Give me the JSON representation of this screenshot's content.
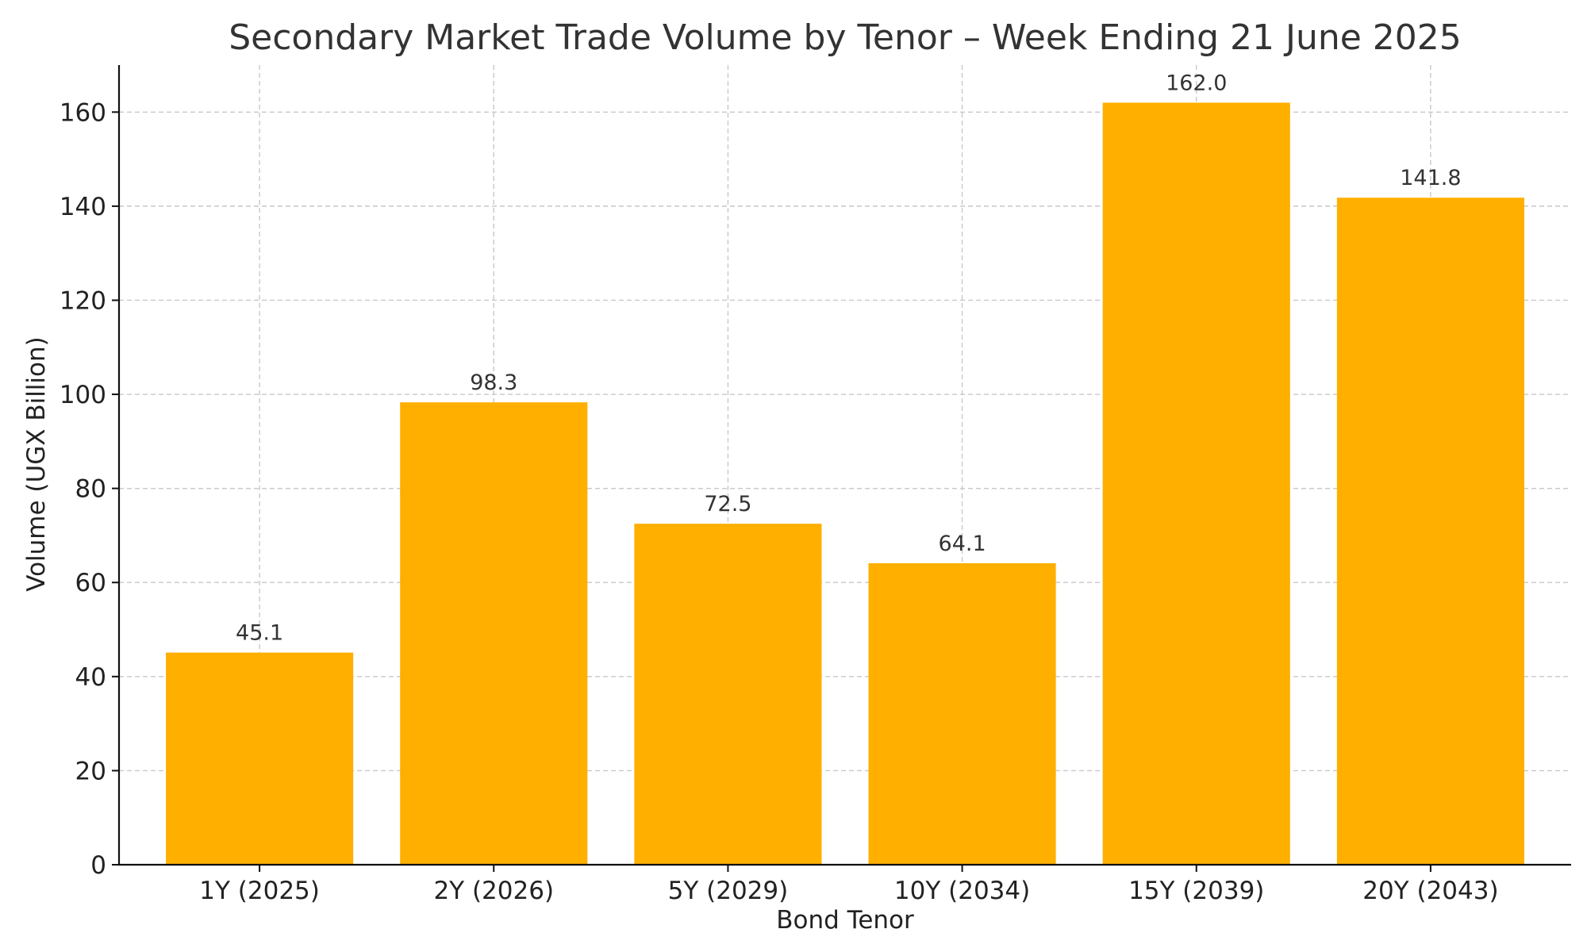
{
  "chart_data": {
    "type": "bar",
    "title": "Secondary Market Trade Volume by Tenor – Week Ending 21 June 2025",
    "xlabel": "Bond Tenor",
    "ylabel": "Volume (UGX Billion)",
    "categories": [
      "1Y (2025)",
      "2Y (2026)",
      "5Y (2029)",
      "10Y (2034)",
      "15Y (2039)",
      "20Y (2043)"
    ],
    "values": [
      45.1,
      98.3,
      72.5,
      64.1,
      162.0,
      141.8
    ],
    "data_labels": [
      "45.1",
      "98.3",
      "72.5",
      "64.1",
      "162.0",
      "141.8"
    ],
    "ylim": [
      0,
      170
    ],
    "yticks": [
      0,
      20,
      40,
      60,
      80,
      100,
      120,
      140,
      160
    ],
    "grid": true,
    "bar_color": "#FFAF00"
  }
}
